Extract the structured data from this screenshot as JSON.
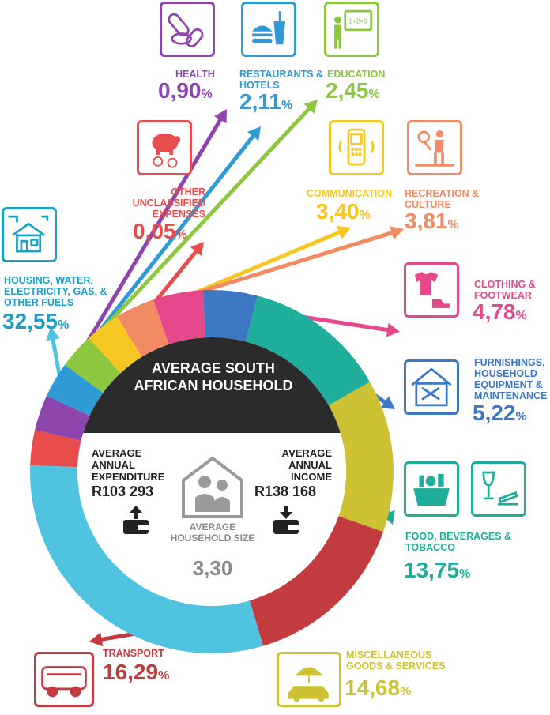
{
  "chart_data": {
    "type": "pie",
    "title": "AVERAGE SOUTH AFRICAN HOUSEHOLD",
    "series": [
      {
        "name": "OTHER UNCLASSIFIED EXPENSES",
        "value": 0.05,
        "label": "0,05",
        "color": "#e84c4c"
      },
      {
        "name": "HEALTH",
        "value": 0.9,
        "label": "0,90",
        "color": "#8e44ad"
      },
      {
        "name": "RESTAURANTS & HOTELS",
        "value": 2.11,
        "label": "2,11",
        "color": "#2e9ad6"
      },
      {
        "name": "EDUCATION",
        "value": 2.45,
        "label": "2,45",
        "color": "#8dc63f"
      },
      {
        "name": "COMMUNICATION",
        "value": 3.4,
        "label": "3,40",
        "color": "#f6c623"
      },
      {
        "name": "RECREATION & CULTURE",
        "value": 3.81,
        "label": "3,81",
        "color": "#f28b63"
      },
      {
        "name": "CLOTHING & FOOTWEAR",
        "value": 4.78,
        "label": "4,78",
        "color": "#e5498c"
      },
      {
        "name": "FURNISHINGS, HOUSEHOLD EQUIPMENT & MAINTENANCE",
        "value": 5.22,
        "label": "5,22",
        "color": "#3c78c3"
      },
      {
        "name": "FOOD, BEVERAGES & TOBACCO",
        "value": 13.75,
        "label": "13,75",
        "color": "#1fae9c"
      },
      {
        "name": "MISCELLANEOUS GOODS & SERVICES",
        "value": 14.68,
        "label": "14,68",
        "color": "#cdc234"
      },
      {
        "name": "TRANSPORT",
        "value": 16.29,
        "label": "16,29",
        "color": "#c43b3f"
      },
      {
        "name": "HOUSING, WATER, ELECTRICITY, GAS, & OTHER FUELS",
        "value": 32.55,
        "label": "32,55",
        "color": "#4fc3df"
      }
    ],
    "percent_symbol": "%"
  },
  "center": {
    "title": "AVERAGE SOUTH AFRICAN HOUSEHOLD",
    "expenditure_label": "AVERAGE ANNUAL EXPENDITURE",
    "expenditure_value": "R103 293",
    "income_label": "AVERAGE ANNUAL INCOME",
    "income_value": "R138 168",
    "household_size_label": "AVERAGE HOUSEHOLD SIZE",
    "household_size_value": "3,30"
  },
  "icons": {
    "health": "pills-icon",
    "restaurants": "burger-drink-icon",
    "education": "teacher-board-icon",
    "other": "piggy-bank-icon",
    "communication": "mobile-phone-icon",
    "recreation": "tennis-player-icon",
    "housing": "house-tap-icon",
    "clothing": "shirt-shoe-icon",
    "furnishings": "tools-house-icon",
    "food": "basket-icon",
    "tobacco": "wine-cigarette-icon",
    "transport": "bus-icon",
    "miscellaneous": "umbrella-car-icon"
  }
}
